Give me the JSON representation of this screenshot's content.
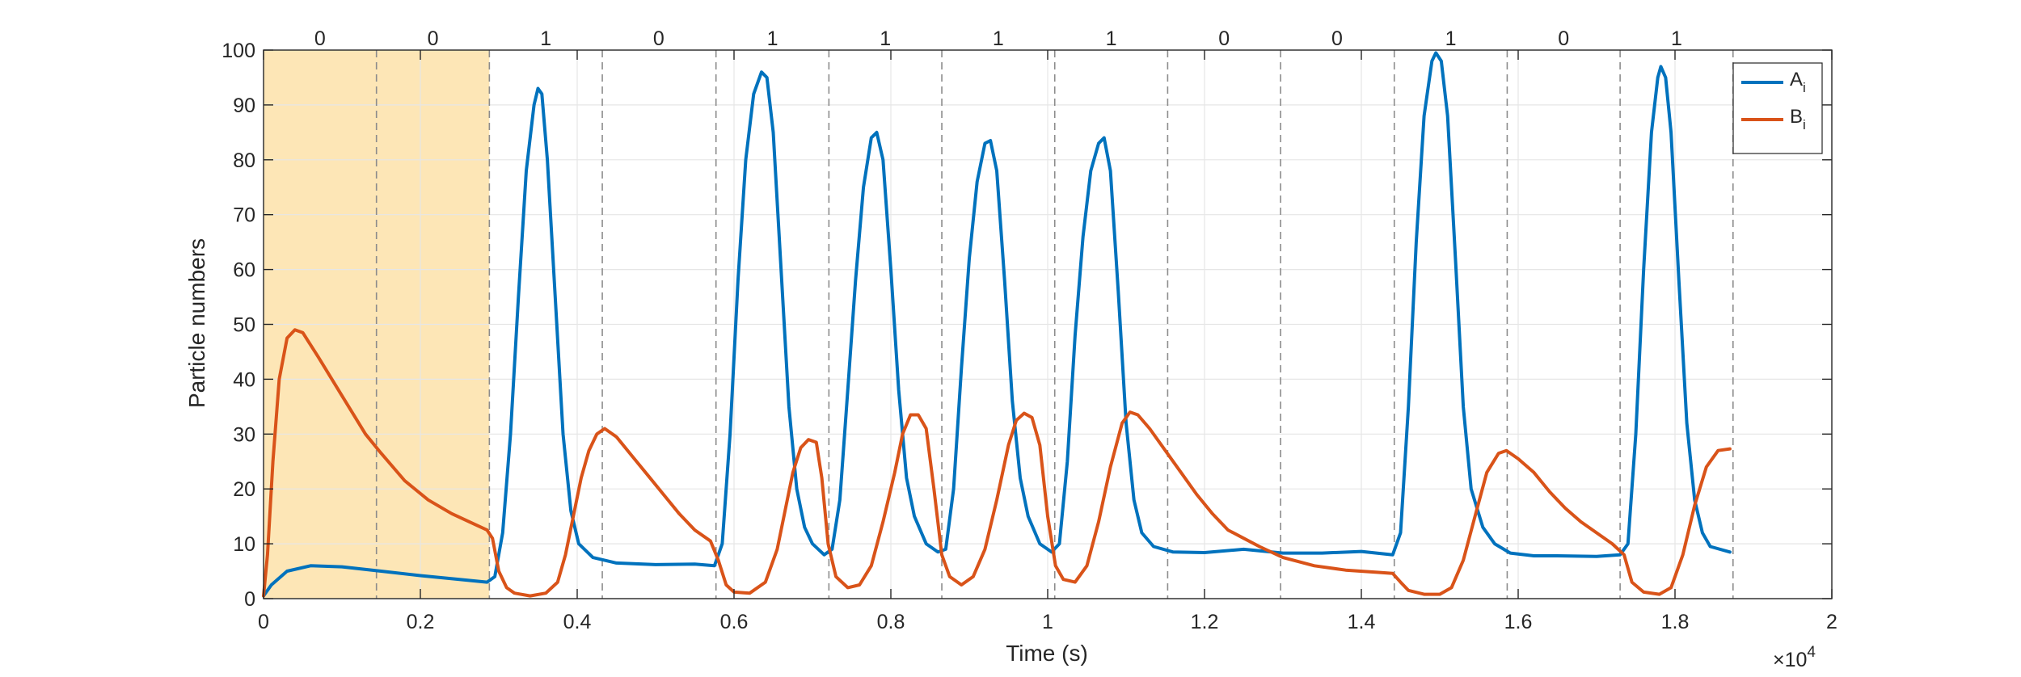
{
  "chart_data": {
    "type": "line",
    "xlabel": "Time (s)",
    "ylabel": "Particle numbers",
    "x_multiplier_label": "×10",
    "x_multiplier_exponent": "4",
    "xlim": [
      0,
      2
    ],
    "ylim": [
      0,
      100
    ],
    "xticks": [
      0,
      0.2,
      0.4,
      0.6,
      0.8,
      1,
      1.2,
      1.4,
      1.6,
      1.8,
      2
    ],
    "xtick_labels": [
      "0",
      "0.2",
      "0.4",
      "0.6",
      "0.8",
      "1",
      "1.2",
      "1.4",
      "1.6",
      "1.8",
      "2"
    ],
    "yticks": [
      0,
      10,
      20,
      30,
      40,
      50,
      60,
      70,
      80,
      90,
      100
    ],
    "ytick_labels": [
      "0",
      "10",
      "20",
      "30",
      "40",
      "50",
      "60",
      "70",
      "80",
      "90",
      "100"
    ],
    "grid": true,
    "legend_position": "top-right",
    "shaded_region": {
      "x_start": 0,
      "x_end": 0.288,
      "color": "#fde6b6"
    },
    "segment_boundaries": [
      0.144,
      0.288,
      0.432,
      0.577,
      0.721,
      0.865,
      1.009,
      1.153,
      1.297,
      1.442,
      1.586,
      1.73,
      1.874
    ],
    "segments": [
      {
        "x_center": 0.072,
        "label": "0"
      },
      {
        "x_center": 0.216,
        "label": "0"
      },
      {
        "x_center": 0.36,
        "label": "1"
      },
      {
        "x_center": 0.504,
        "label": "0"
      },
      {
        "x_center": 0.649,
        "label": "1"
      },
      {
        "x_center": 0.793,
        "label": "1"
      },
      {
        "x_center": 0.937,
        "label": "1"
      },
      {
        "x_center": 1.081,
        "label": "1"
      },
      {
        "x_center": 1.225,
        "label": "0"
      },
      {
        "x_center": 1.369,
        "label": "0"
      },
      {
        "x_center": 1.514,
        "label": "1"
      },
      {
        "x_center": 1.658,
        "label": "0"
      },
      {
        "x_center": 1.802,
        "label": "1"
      }
    ],
    "series": [
      {
        "name": "A",
        "subscript": "i",
        "color": "#0072bd",
        "points": [
          [
            0,
            0.5
          ],
          [
            0.01,
            2.5
          ],
          [
            0.03,
            5.0
          ],
          [
            0.06,
            6.0
          ],
          [
            0.1,
            5.8
          ],
          [
            0.15,
            5.0
          ],
          [
            0.2,
            4.2
          ],
          [
            0.25,
            3.5
          ],
          [
            0.285,
            3.0
          ],
          [
            0.295,
            4.0
          ],
          [
            0.305,
            12
          ],
          [
            0.315,
            30
          ],
          [
            0.325,
            55
          ],
          [
            0.335,
            78
          ],
          [
            0.345,
            90
          ],
          [
            0.35,
            93
          ],
          [
            0.355,
            92
          ],
          [
            0.362,
            80
          ],
          [
            0.372,
            55
          ],
          [
            0.382,
            30
          ],
          [
            0.392,
            16
          ],
          [
            0.402,
            10
          ],
          [
            0.42,
            7.5
          ],
          [
            0.45,
            6.5
          ],
          [
            0.5,
            6.2
          ],
          [
            0.55,
            6.3
          ],
          [
            0.575,
            6.0
          ],
          [
            0.585,
            10
          ],
          [
            0.595,
            30
          ],
          [
            0.605,
            58
          ],
          [
            0.615,
            80
          ],
          [
            0.625,
            92
          ],
          [
            0.635,
            96
          ],
          [
            0.642,
            95
          ],
          [
            0.65,
            85
          ],
          [
            0.66,
            60
          ],
          [
            0.67,
            35
          ],
          [
            0.68,
            20
          ],
          [
            0.69,
            13
          ],
          [
            0.7,
            10
          ],
          [
            0.715,
            8
          ],
          [
            0.725,
            9
          ],
          [
            0.735,
            18
          ],
          [
            0.745,
            38
          ],
          [
            0.755,
            58
          ],
          [
            0.765,
            75
          ],
          [
            0.775,
            84
          ],
          [
            0.782,
            85
          ],
          [
            0.79,
            80
          ],
          [
            0.8,
            60
          ],
          [
            0.81,
            38
          ],
          [
            0.82,
            22
          ],
          [
            0.83,
            15
          ],
          [
            0.845,
            10
          ],
          [
            0.86,
            8.5
          ],
          [
            0.87,
            9
          ],
          [
            0.88,
            20
          ],
          [
            0.89,
            42
          ],
          [
            0.9,
            62
          ],
          [
            0.91,
            76
          ],
          [
            0.92,
            83
          ],
          [
            0.927,
            83.5
          ],
          [
            0.935,
            78
          ],
          [
            0.945,
            58
          ],
          [
            0.955,
            36
          ],
          [
            0.965,
            22
          ],
          [
            0.975,
            15
          ],
          [
            0.99,
            10
          ],
          [
            1.005,
            8.5
          ],
          [
            1.015,
            10
          ],
          [
            1.025,
            25
          ],
          [
            1.035,
            48
          ],
          [
            1.045,
            66
          ],
          [
            1.055,
            78
          ],
          [
            1.065,
            83
          ],
          [
            1.072,
            84
          ],
          [
            1.08,
            78
          ],
          [
            1.09,
            56
          ],
          [
            1.1,
            32
          ],
          [
            1.11,
            18
          ],
          [
            1.12,
            12
          ],
          [
            1.135,
            9.5
          ],
          [
            1.16,
            8.5
          ],
          [
            1.2,
            8.4
          ],
          [
            1.25,
            9.0
          ],
          [
            1.3,
            8.3
          ],
          [
            1.35,
            8.3
          ],
          [
            1.4,
            8.6
          ],
          [
            1.44,
            8.0
          ],
          [
            1.45,
            12
          ],
          [
            1.46,
            35
          ],
          [
            1.47,
            65
          ],
          [
            1.48,
            88
          ],
          [
            1.49,
            98
          ],
          [
            1.495,
            99.5
          ],
          [
            1.502,
            98
          ],
          [
            1.51,
            88
          ],
          [
            1.52,
            62
          ],
          [
            1.53,
            35
          ],
          [
            1.54,
            20
          ],
          [
            1.555,
            13
          ],
          [
            1.57,
            10
          ],
          [
            1.59,
            8.3
          ],
          [
            1.62,
            7.8
          ],
          [
            1.65,
            7.8
          ],
          [
            1.7,
            7.7
          ],
          [
            1.73,
            8.0
          ],
          [
            1.74,
            10
          ],
          [
            1.75,
            30
          ],
          [
            1.76,
            60
          ],
          [
            1.77,
            85
          ],
          [
            1.778,
            95
          ],
          [
            1.782,
            97
          ],
          [
            1.788,
            95
          ],
          [
            1.795,
            85
          ],
          [
            1.805,
            58
          ],
          [
            1.815,
            32
          ],
          [
            1.825,
            18
          ],
          [
            1.835,
            12
          ],
          [
            1.845,
            9.5
          ],
          [
            1.87,
            8.5
          ]
        ]
      },
      {
        "name": "B",
        "subscript": "i",
        "color": "#d95319",
        "points": [
          [
            0,
            0.5
          ],
          [
            0.005,
            8
          ],
          [
            0.012,
            25
          ],
          [
            0.02,
            40
          ],
          [
            0.03,
            47.5
          ],
          [
            0.04,
            49
          ],
          [
            0.05,
            48.5
          ],
          [
            0.07,
            44
          ],
          [
            0.1,
            37
          ],
          [
            0.13,
            30
          ],
          [
            0.15,
            26.5
          ],
          [
            0.18,
            21.5
          ],
          [
            0.21,
            18
          ],
          [
            0.24,
            15.5
          ],
          [
            0.27,
            13.5
          ],
          [
            0.285,
            12.5
          ],
          [
            0.292,
            11
          ],
          [
            0.3,
            5
          ],
          [
            0.31,
            2
          ],
          [
            0.32,
            1
          ],
          [
            0.34,
            0.5
          ],
          [
            0.36,
            1.0
          ],
          [
            0.375,
            3
          ],
          [
            0.385,
            8
          ],
          [
            0.395,
            15
          ],
          [
            0.405,
            22
          ],
          [
            0.415,
            27
          ],
          [
            0.425,
            30
          ],
          [
            0.435,
            31
          ],
          [
            0.45,
            29.5
          ],
          [
            0.47,
            26
          ],
          [
            0.49,
            22.5
          ],
          [
            0.51,
            19
          ],
          [
            0.53,
            15.5
          ],
          [
            0.55,
            12.5
          ],
          [
            0.57,
            10.5
          ],
          [
            0.58,
            7
          ],
          [
            0.59,
            2.5
          ],
          [
            0.6,
            1.2
          ],
          [
            0.62,
            1
          ],
          [
            0.64,
            3
          ],
          [
            0.655,
            9
          ],
          [
            0.665,
            16
          ],
          [
            0.675,
            23
          ],
          [
            0.685,
            27.5
          ],
          [
            0.695,
            29
          ],
          [
            0.705,
            28.5
          ],
          [
            0.712,
            22
          ],
          [
            0.72,
            10
          ],
          [
            0.73,
            4
          ],
          [
            0.745,
            2
          ],
          [
            0.76,
            2.5
          ],
          [
            0.775,
            6
          ],
          [
            0.79,
            14
          ],
          [
            0.805,
            23
          ],
          [
            0.815,
            30
          ],
          [
            0.825,
            33.5
          ],
          [
            0.835,
            33.5
          ],
          [
            0.845,
            31
          ],
          [
            0.855,
            20
          ],
          [
            0.865,
            8
          ],
          [
            0.875,
            4
          ],
          [
            0.89,
            2.5
          ],
          [
            0.905,
            4
          ],
          [
            0.92,
            9
          ],
          [
            0.935,
            18
          ],
          [
            0.95,
            28
          ],
          [
            0.96,
            32.5
          ],
          [
            0.97,
            33.8
          ],
          [
            0.98,
            33
          ],
          [
            0.99,
            28
          ],
          [
            1.0,
            15
          ],
          [
            1.01,
            6
          ],
          [
            1.02,
            3.5
          ],
          [
            1.035,
            3
          ],
          [
            1.05,
            6
          ],
          [
            1.065,
            14
          ],
          [
            1.08,
            24
          ],
          [
            1.095,
            32
          ],
          [
            1.105,
            34
          ],
          [
            1.115,
            33.5
          ],
          [
            1.13,
            31
          ],
          [
            1.15,
            27
          ],
          [
            1.17,
            23
          ],
          [
            1.19,
            19
          ],
          [
            1.21,
            15.5
          ],
          [
            1.23,
            12.5
          ],
          [
            1.25,
            11
          ],
          [
            1.27,
            9.5
          ],
          [
            1.3,
            7.5
          ],
          [
            1.34,
            6.0
          ],
          [
            1.38,
            5.2
          ],
          [
            1.42,
            4.8
          ],
          [
            1.44,
            4.6
          ],
          [
            1.45,
            3
          ],
          [
            1.46,
            1.5
          ],
          [
            1.48,
            0.8
          ],
          [
            1.5,
            0.8
          ],
          [
            1.515,
            2
          ],
          [
            1.53,
            7
          ],
          [
            1.545,
            15
          ],
          [
            1.56,
            23
          ],
          [
            1.575,
            26.5
          ],
          [
            1.585,
            27
          ],
          [
            1.6,
            25.5
          ],
          [
            1.62,
            23
          ],
          [
            1.64,
            19.5
          ],
          [
            1.66,
            16.5
          ],
          [
            1.68,
            14
          ],
          [
            1.7,
            12
          ],
          [
            1.72,
            10
          ],
          [
            1.735,
            8
          ],
          [
            1.745,
            3
          ],
          [
            1.76,
            1.2
          ],
          [
            1.78,
            0.8
          ],
          [
            1.795,
            2
          ],
          [
            1.81,
            8
          ],
          [
            1.825,
            17
          ],
          [
            1.84,
            24
          ],
          [
            1.855,
            27
          ],
          [
            1.87,
            27.3
          ]
        ]
      }
    ]
  }
}
